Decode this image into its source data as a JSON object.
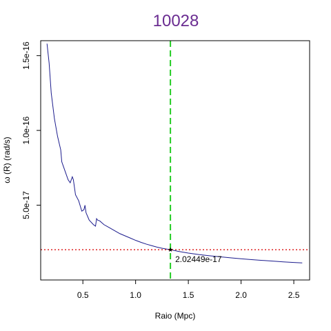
{
  "chart_data": {
    "type": "line",
    "title": "10028",
    "xlabel": "Raio (Mpc)",
    "ylabel": "ω (R) (rad/s)",
    "xlim": [
      0.1,
      2.65
    ],
    "ylim": [
      0.0,
      1.6e-16
    ],
    "xticks": [
      {
        "value": 0.5,
        "label": "0.5"
      },
      {
        "value": 1.0,
        "label": "1.0"
      },
      {
        "value": 1.5,
        "label": "1.5"
      },
      {
        "value": 2.0,
        "label": "2.0"
      },
      {
        "value": 2.5,
        "label": "2.5"
      }
    ],
    "yticks": [
      {
        "value": 5e-17,
        "label": "5.0e-17"
      },
      {
        "value": 1e-16,
        "label": "1.0e-16"
      },
      {
        "value": 1.5e-16,
        "label": "1.5e-16"
      }
    ],
    "grid": false,
    "series": [
      {
        "color": "#1a1a8c",
        "x": [
          0.16,
          0.18,
          0.2,
          0.23,
          0.26,
          0.29,
          0.3,
          0.33,
          0.36,
          0.38,
          0.4,
          0.41,
          0.43,
          0.46,
          0.49,
          0.51,
          0.52,
          0.53,
          0.56,
          0.6,
          0.62,
          0.63,
          0.64,
          0.66,
          0.7,
          0.75,
          0.8,
          0.85,
          0.9,
          0.95,
          1.0,
          1.05,
          1.1,
          1.15,
          1.2,
          1.25,
          1.3,
          1.33,
          1.4,
          1.5,
          1.6,
          1.7,
          1.8,
          1.9,
          2.0,
          2.1,
          2.2,
          2.3,
          2.4,
          2.5,
          2.58
        ],
        "y": [
          1.58e-16,
          1.45e-16,
          1.25e-16,
          1.08e-16,
          9.6e-17,
          8.7e-17,
          7.9e-17,
          7.3e-17,
          6.7e-17,
          6.5e-17,
          6.9e-17,
          6.7e-17,
          5.7e-17,
          5.3e-17,
          4.6e-17,
          4.7e-17,
          5e-17,
          4.5e-17,
          4e-17,
          3.7e-17,
          3.6e-17,
          4.1e-17,
          4e-17,
          3.95e-17,
          3.7e-17,
          3.5e-17,
          3.3e-17,
          3.1e-17,
          2.95e-17,
          2.8e-17,
          2.65e-17,
          2.52e-17,
          2.4e-17,
          2.3e-17,
          2.2e-17,
          2.12e-17,
          2.06e-17,
          2.02449e-17,
          1.92e-17,
          1.8e-17,
          1.7e-17,
          1.62e-17,
          1.55e-17,
          1.48e-17,
          1.42e-17,
          1.36e-17,
          1.31e-17,
          1.26e-17,
          1.21e-17,
          1.17e-17,
          1.14e-17
        ]
      }
    ],
    "vline": {
      "x": 1.33,
      "color": "#22cc22",
      "style": "dashed"
    },
    "hline": {
      "y": 2.02449e-17,
      "color": "#dd2222",
      "style": "dotted"
    },
    "marker": {
      "x": 1.33,
      "y": 2.02449e-17,
      "label": "2.02449e-17"
    }
  }
}
